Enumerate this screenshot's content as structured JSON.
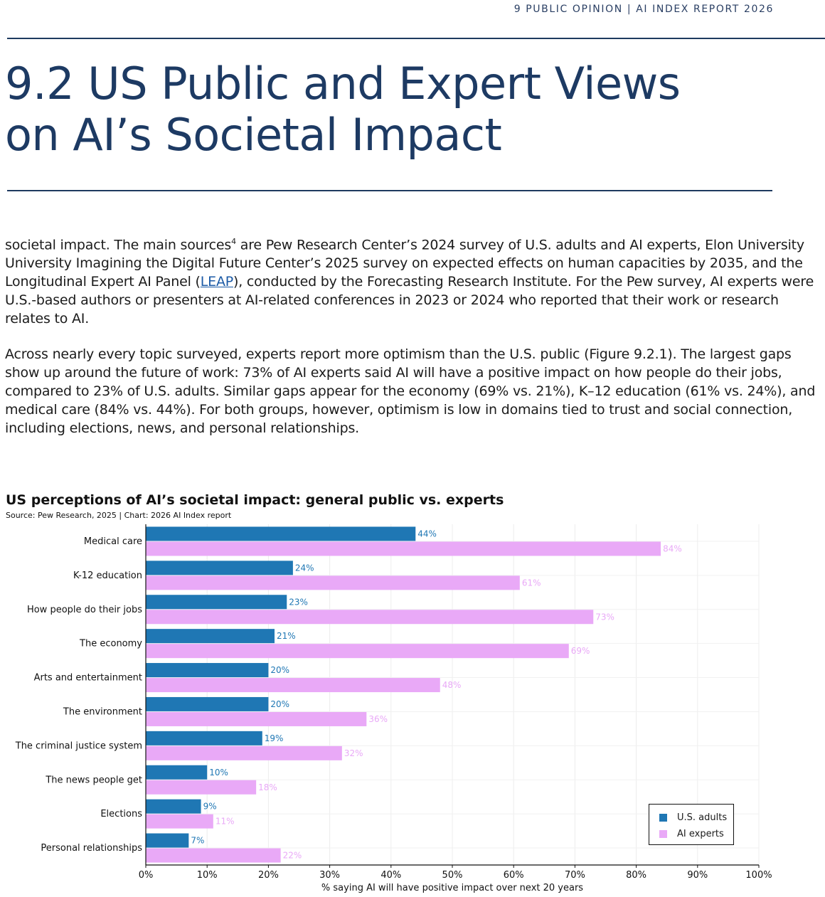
{
  "header": {
    "running_head": "9 PUBLIC OPINION  |  AI INDEX REPORT 2026",
    "title_line1": "9.2 US Public and Expert Views",
    "title_line2": "on AI’s Societal Impact"
  },
  "body": {
    "p1_before_sup": "societal impact. The main sources",
    "p1_sup": "4",
    "p1_after_sup": " are Pew Research Center’s 2024 survey of U.S. adults and AI experts, Elon University University Imagining the Digital Future Center’s 2025 survey on expected effects on human capacities by 2035, and the Longitudinal Expert AI Panel (",
    "p1_link": "LEAP",
    "p1_end": "), conducted by the Forecasting Research Institute. For the Pew survey, AI experts were U.S.-based authors or presenters at AI-related conferences in 2023 or 2024 who reported that their work or research relates to AI.",
    "p2": "Across nearly every topic surveyed, experts report more optimism than the U.S. public (Figure 9.2.1). The largest gaps show up around the future of work: 73% of AI experts said AI will have a positive impact on how people do their jobs, compared to 23% of U.S. adults. Similar gaps appear for the economy (69% vs. 21%), K–12 education (61% vs. 24%), and medical care (84% vs. 44%). For both groups, however, optimism is low in domains tied to trust and social connection, including elections, news, and personal relationships."
  },
  "chart_data": {
    "type": "bar",
    "orientation": "horizontal",
    "title": "US perceptions of AI’s societal impact: general public vs. experts",
    "source": "Source: Pew Research, 2025 | Chart: 2026 AI Index report",
    "xlabel": "% saying AI will have positive impact over next 20 years",
    "xlim": [
      0,
      100
    ],
    "xticks": [
      "0%",
      "10%",
      "20%",
      "30%",
      "40%",
      "50%",
      "60%",
      "70%",
      "80%",
      "90%",
      "100%"
    ],
    "grid": true,
    "legend_position": "bottom-right",
    "categories": [
      "Medical care",
      "K-12 education",
      "How people do their jobs",
      "The economy",
      "Arts and entertainment",
      "The environment",
      "The criminal justice system",
      "The news people get",
      "Elections",
      "Personal relationships"
    ],
    "series": [
      {
        "name": "U.S. adults",
        "color": "#1f77b4",
        "values": [
          44,
          24,
          23,
          21,
          20,
          20,
          19,
          10,
          9,
          7
        ]
      },
      {
        "name": "AI experts",
        "color": "#e9a9f7",
        "values": [
          84,
          61,
          73,
          69,
          48,
          36,
          32,
          18,
          11,
          22
        ]
      }
    ]
  }
}
